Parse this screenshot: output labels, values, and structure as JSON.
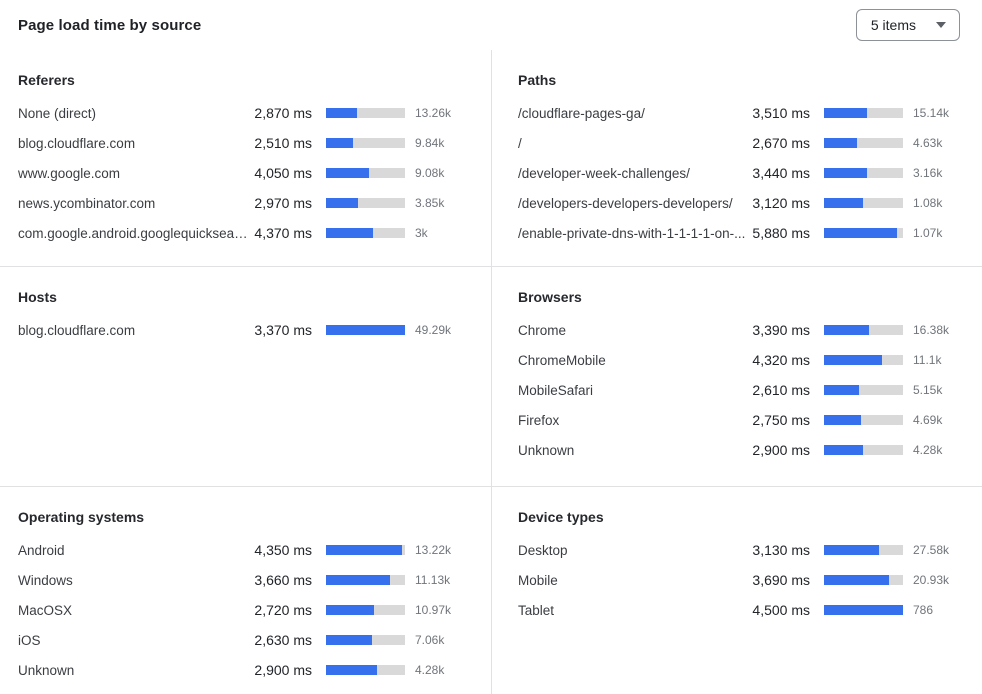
{
  "header": {
    "title": "Page load time by source",
    "items_select": {
      "value": "5 items"
    }
  },
  "colors": {
    "bar_fill": "#3670ec",
    "bar_track": "#d9d9d9",
    "divider": "#e1e1e3"
  },
  "chart_data": [
    {
      "type": "bar",
      "title": "Referers",
      "unit": "ms",
      "xlim": [
        0,
        7400
      ],
      "categories": [
        "None (direct)",
        "blog.cloudflare.com",
        "www.google.com",
        "news.ycombinator.com",
        "com.google.android.googlequicksearc..."
      ],
      "values": [
        2870,
        2510,
        4050,
        2970,
        4370
      ],
      "value_labels": [
        "2,870 ms",
        "2,510 ms",
        "4,050 ms",
        "2,970 ms",
        "4,370 ms"
      ],
      "counts": [
        "13.26k",
        "9.84k",
        "9.08k",
        "3.85k",
        "3k"
      ],
      "bar_pct": [
        38.8,
        33.9,
        54.7,
        40.1,
        59.1
      ]
    },
    {
      "type": "bar",
      "title": "Paths",
      "unit": "ms",
      "xlim": [
        0,
        6400
      ],
      "categories": [
        "/cloudflare-pages-ga/",
        "/",
        "/developer-week-challenges/",
        "/developers-developers-developers/",
        "/enable-private-dns-with-1-1-1-1-on-..."
      ],
      "values": [
        3510,
        2670,
        3440,
        3120,
        5880
      ],
      "value_labels": [
        "3,510 ms",
        "2,670 ms",
        "3,440 ms",
        "3,120 ms",
        "5,880 ms"
      ],
      "counts": [
        "15.14k",
        "4.63k",
        "3.16k",
        "1.08k",
        "1.07k"
      ],
      "bar_pct": [
        54.8,
        41.7,
        53.8,
        48.8,
        91.9
      ]
    },
    {
      "type": "bar",
      "title": "Hosts",
      "unit": "ms",
      "xlim": [
        0,
        3370
      ],
      "categories": [
        "blog.cloudflare.com"
      ],
      "values": [
        3370
      ],
      "value_labels": [
        "3,370 ms"
      ],
      "counts": [
        "49.29k"
      ],
      "bar_pct": [
        100
      ]
    },
    {
      "type": "bar",
      "title": "Browsers",
      "unit": "ms",
      "xlim": [
        0,
        5900
      ],
      "categories": [
        "Chrome",
        "ChromeMobile",
        "MobileSafari",
        "Firefox",
        "Unknown"
      ],
      "values": [
        3390,
        4320,
        2610,
        2750,
        2900
      ],
      "value_labels": [
        "3,390 ms",
        "4,320 ms",
        "2,610 ms",
        "2,750 ms",
        "2,900 ms"
      ],
      "counts": [
        "16.38k",
        "11.1k",
        "5.15k",
        "4.69k",
        "4.28k"
      ],
      "bar_pct": [
        57.5,
        73.2,
        44.2,
        46.6,
        49.2
      ]
    },
    {
      "type": "bar",
      "title": "Operating systems",
      "unit": "ms",
      "xlim": [
        0,
        4500
      ],
      "categories": [
        "Android",
        "Windows",
        "MacOSX",
        "iOS",
        "Unknown"
      ],
      "values": [
        4350,
        3660,
        2720,
        2630,
        2900
      ],
      "value_labels": [
        "4,350 ms",
        "3,660 ms",
        "2,720 ms",
        "2,630 ms",
        "2,900 ms"
      ],
      "counts": [
        "13.22k",
        "11.13k",
        "10.97k",
        "7.06k",
        "4.28k"
      ],
      "bar_pct": [
        96.7,
        81.3,
        60.4,
        58.4,
        64.4
      ]
    },
    {
      "type": "bar",
      "title": "Device types",
      "unit": "ms",
      "xlim": [
        0,
        4500
      ],
      "categories": [
        "Desktop",
        "Mobile",
        "Tablet"
      ],
      "values": [
        3130,
        3690,
        4500
      ],
      "value_labels": [
        "3,130 ms",
        "3,690 ms",
        "4,500 ms"
      ],
      "counts": [
        "27.58k",
        "20.93k",
        "786"
      ],
      "bar_pct": [
        69.6,
        82.0,
        100
      ]
    }
  ]
}
